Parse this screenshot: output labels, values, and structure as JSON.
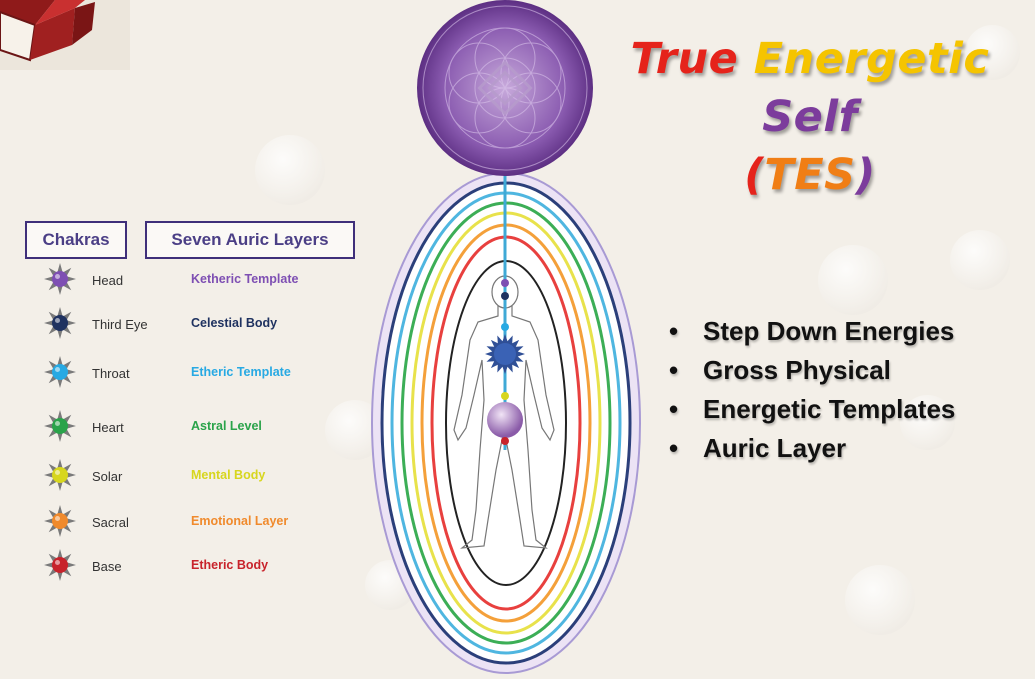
{
  "title": {
    "line1_words": [
      {
        "text": "True",
        "color": "#e5231b"
      },
      {
        "text": "Energetic",
        "color": "#f5c400"
      },
      {
        "text": "Self",
        "color": "#7c3c9c"
      }
    ],
    "line2": {
      "open": "(",
      "text": "TES",
      "close": ")",
      "open_color": "#e5231b",
      "text_color": "#f07e15",
      "close_color": "#7c3c9c"
    }
  },
  "headers": {
    "chakras": "Chakras",
    "layers": "Seven Auric Layers"
  },
  "rows": [
    {
      "chakra": "Head",
      "layer": "Ketheric Template",
      "color": "#7e4fb3",
      "icon": "violet-chakra-icon"
    },
    {
      "chakra": "Third Eye",
      "layer": "Celestial Body",
      "color": "#1f3260",
      "icon": "indigo-chakra-icon"
    },
    {
      "chakra": "Throat",
      "layer": "Etheric Template",
      "color": "#27a9e3",
      "icon": "blue-chakra-icon"
    },
    {
      "chakra": "Heart",
      "layer": "Astral Level",
      "color": "#2aa34a",
      "icon": "green-chakra-icon"
    },
    {
      "chakra": "Solar",
      "layer": "Mental Body",
      "color": "#d7d61e",
      "icon": "yellow-chakra-icon"
    },
    {
      "chakra": "Sacral",
      "layer": "Emotional Layer",
      "color": "#f08a2c",
      "icon": "orange-chakra-icon"
    },
    {
      "chakra": "Base",
      "layer": "Etheric Body",
      "color": "#c8232b",
      "icon": "red-chakra-icon"
    }
  ],
  "aura_colors": [
    "#a89ad4",
    "#2b3f7a",
    "#4fb6e0",
    "#3cae56",
    "#e8e24b",
    "#f4a03a",
    "#e8403e",
    "#222222"
  ],
  "bullets": [
    "Step Down Energies",
    "Gross Physical",
    "Energetic Templates",
    "Auric Layer"
  ],
  "colors": {
    "header_border": "#3f2f7a",
    "orb": "#8a5bb0"
  }
}
